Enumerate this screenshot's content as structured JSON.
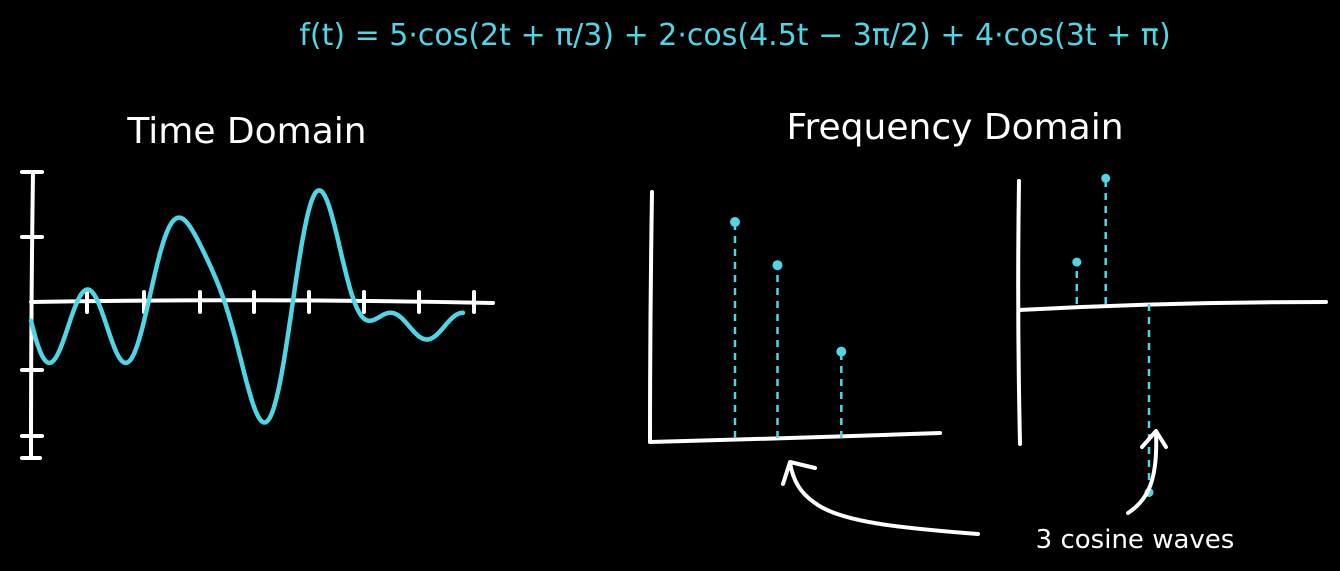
{
  "equation": "f(t) = 5·cos(2t + π/3) + 2·cos(4.5t − 3π/2) + 4·cos(3t + π)",
  "time_domain": {
    "title": "Time Domain"
  },
  "frequency_domain": {
    "title": "Frequency Domain"
  },
  "annotation": {
    "text": "3 cosine waves"
  },
  "colors": {
    "background": "#000000",
    "ink": "#ffffff",
    "accent": "#4fd6e6"
  },
  "chart_data": [
    {
      "type": "line",
      "title": "Time Domain",
      "function": "f(t) = 5·cos(2t + π/3) + 2·cos(4.5t − 3π/2) + 4·cos(3t + π)",
      "components": [
        {
          "amplitude": 5,
          "frequency": 2,
          "phase": 1.0472
        },
        {
          "amplitude": 2,
          "frequency": 4.5,
          "phase": -4.7124
        },
        {
          "amplitude": 4,
          "frequency": 3,
          "phase": 3.1416
        }
      ]
    },
    {
      "type": "stem",
      "title": "Frequency Domain",
      "x": [
        2,
        3,
        4.5
      ],
      "amplitude": [
        5,
        4,
        2
      ]
    },
    {
      "type": "stem",
      "x": [
        2,
        3,
        4.5
      ],
      "phase": [
        1.0472,
        3.1416,
        -4.7124
      ]
    }
  ]
}
